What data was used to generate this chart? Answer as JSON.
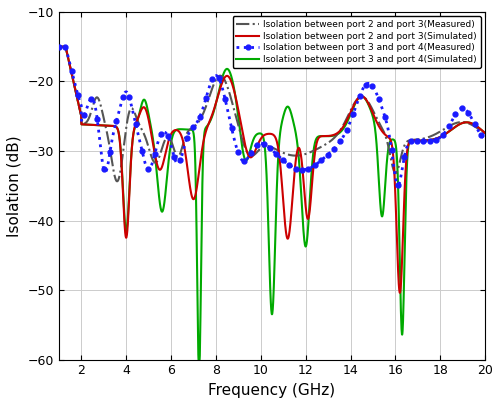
{
  "title": "",
  "xlabel": "Frequency (GHz)",
  "ylabel": "Isolation (dB)",
  "xlim": [
    1,
    20
  ],
  "ylim": [
    -60,
    -10
  ],
  "xticks": [
    2,
    4,
    6,
    8,
    10,
    12,
    14,
    16,
    18,
    20
  ],
  "yticks": [
    -60,
    -50,
    -40,
    -30,
    -20,
    -10
  ],
  "legend": [
    "Isolation between port 2 and port 3(Measured)",
    "Isolation between port 2 and port 3(Simulated)",
    "Isolation between port 3 and port 4(Measured)",
    "Isolation between port 3 and port 4(Simulated)"
  ],
  "line_colors": [
    "#555555",
    "#cc0000",
    "#1a1aff",
    "#00aa00"
  ],
  "grid_color": "#cccccc",
  "background_color": "#ffffff"
}
